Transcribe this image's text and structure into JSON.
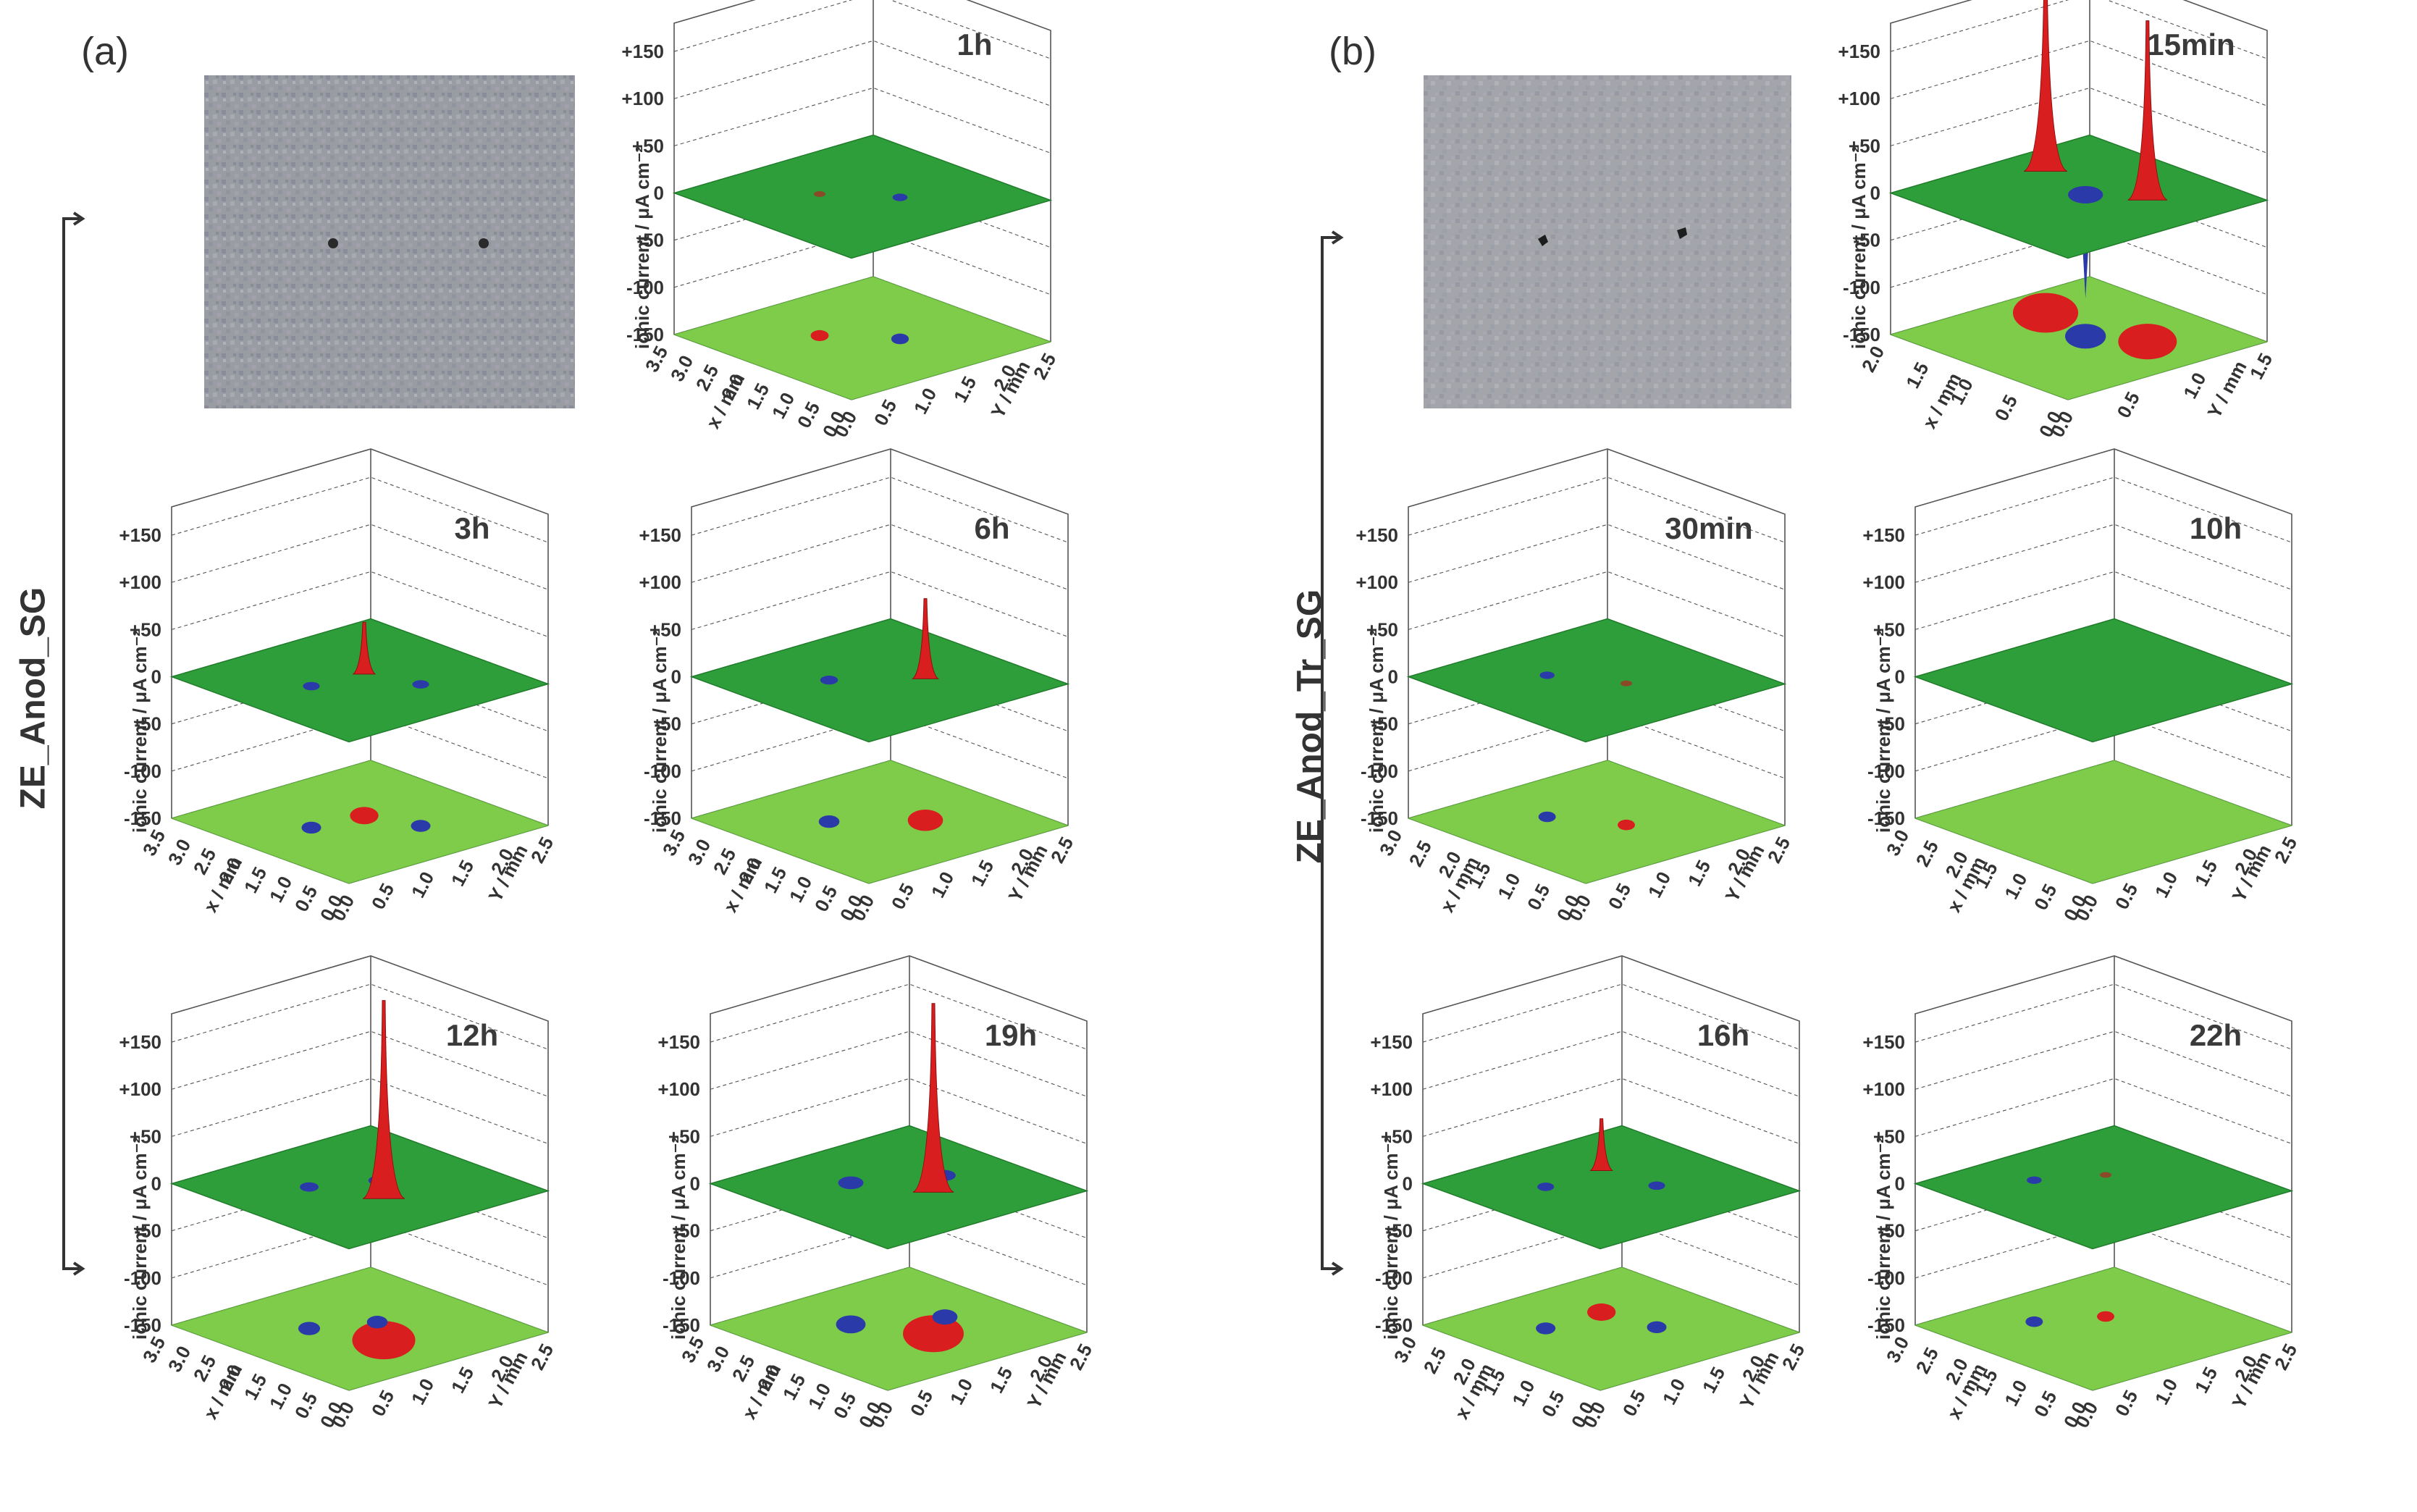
{
  "panels": [
    {
      "id": "a",
      "label": "(a)",
      "group_label": "ZE_Anod_SG"
    },
    {
      "id": "b",
      "label": "(b)",
      "group_label": "ZE_Anod_Tr_SG"
    }
  ],
  "chart_data": [
    {
      "type": "surface3d",
      "panel": "a",
      "title": "1h",
      "zlabel": "ionic current / μA cm⁻²",
      "zticks": [
        "+150",
        "+100",
        "+50",
        "0",
        "-50",
        "-100",
        "-150"
      ],
      "zlim": [
        -150,
        180
      ],
      "xlabel": "x / mm",
      "xticks": [
        "0.0",
        "0.5",
        "1.0",
        "1.5",
        "2.0",
        "2.5",
        "3.0",
        "3.5"
      ],
      "ylabel": "Y / mm",
      "yticks": [
        "0.0",
        "0.5",
        "1.0",
        "1.5",
        "2.0",
        "2.5"
      ],
      "features": [
        {
          "sign": "anodic",
          "peak": 8,
          "x": 2.2,
          "y": 1.0
        },
        {
          "sign": "cathodic",
          "peak": -6,
          "x": 1.4,
          "y": 1.5
        }
      ]
    },
    {
      "type": "surface3d",
      "panel": "a",
      "title": "3h",
      "zlabel": "ionic current / μA cm⁻²",
      "zticks": [
        "+150",
        "+100",
        "+50",
        "0",
        "-50",
        "-100",
        "-150"
      ],
      "zlim": [
        -150,
        180
      ],
      "xlabel": "x / mm",
      "xticks": [
        "0.0",
        "0.5",
        "1.0",
        "1.5",
        "2.0",
        "2.5",
        "3.0",
        "3.5"
      ],
      "ylabel": "Y / mm",
      "yticks": [
        "0.0",
        "0.5",
        "1.0",
        "1.5",
        "2.0",
        "2.5"
      ],
      "features": [
        {
          "sign": "anodic",
          "peak": 55,
          "x": 1.9,
          "y": 1.4
        },
        {
          "sign": "cathodic",
          "peak": -15,
          "x": 1.1,
          "y": 1.6
        },
        {
          "sign": "cathodic",
          "peak": -15,
          "x": 2.0,
          "y": 0.8
        }
      ]
    },
    {
      "type": "surface3d",
      "panel": "a",
      "title": "6h",
      "zlabel": "ionic current / μA cm⁻²",
      "zticks": [
        "+150",
        "+100",
        "+50",
        "0",
        "-50",
        "-100",
        "-150"
      ],
      "zlim": [
        -150,
        180
      ],
      "xlabel": "x / mm",
      "xticks": [
        "0.0",
        "0.5",
        "1.0",
        "1.5",
        "2.0",
        "2.5",
        "3.0",
        "3.5"
      ],
      "ylabel": "Y / mm",
      "yticks": [
        "0.0",
        "0.5",
        "1.0",
        "1.5",
        "2.0",
        "2.5"
      ],
      "features": [
        {
          "sign": "anodic",
          "peak": 85,
          "x": 1.4,
          "y": 1.6
        },
        {
          "sign": "cathodic",
          "peak": -20,
          "x": 2.2,
          "y": 0.9
        }
      ]
    },
    {
      "type": "surface3d",
      "panel": "a",
      "title": "12h",
      "zlabel": "ionic current / μA cm⁻²",
      "zticks": [
        "+150",
        "+100",
        "+50",
        "0",
        "-50",
        "-100",
        "-150"
      ],
      "zlim": [
        -150,
        180
      ],
      "xlabel": "x / mm",
      "xticks": [
        "0.0",
        "0.5",
        "1.0",
        "1.5",
        "2.0",
        "2.5",
        "3.0",
        "3.5"
      ],
      "ylabel": "Y / mm",
      "yticks": [
        "0.0",
        "0.5",
        "1.0",
        "1.5",
        "2.0",
        "2.5"
      ],
      "features": [
        {
          "sign": "anodic",
          "peak": 210,
          "x": 1.2,
          "y": 1.2
        },
        {
          "sign": "cathodic",
          "peak": -25,
          "x": 2.2,
          "y": 0.9
        },
        {
          "sign": "cathodic",
          "peak": -20,
          "x": 1.8,
          "y": 1.5
        }
      ]
    },
    {
      "type": "surface3d",
      "panel": "a",
      "title": "19h",
      "zlabel": "ionic current / μA cm⁻²",
      "zticks": [
        "+150",
        "+100",
        "+50",
        "0",
        "-50",
        "-100",
        "-150"
      ],
      "zlim": [
        -150,
        180
      ],
      "xlabel": "x / mm",
      "xticks": [
        "0.0",
        "0.5",
        "1.0",
        "1.5",
        "2.0",
        "2.5",
        "3.0",
        "3.5"
      ],
      "ylabel": "Y / mm",
      "yticks": [
        "0.0",
        "0.5",
        "1.0",
        "1.5",
        "2.0",
        "2.5"
      ],
      "features": [
        {
          "sign": "anodic",
          "peak": 200,
          "x": 1.3,
          "y": 1.4
        },
        {
          "sign": "cathodic",
          "peak": -60,
          "x": 2.3,
          "y": 1.0
        },
        {
          "sign": "cathodic",
          "peak": -40,
          "x": 1.7,
          "y": 1.8
        }
      ]
    },
    {
      "type": "surface3d",
      "panel": "b",
      "title": "15min",
      "zlabel": "ionic current / μA cm⁻²",
      "zticks": [
        "+150",
        "+100",
        "+50",
        "0",
        "-50",
        "-100",
        "-150"
      ],
      "zlim": [
        -150,
        180
      ],
      "xlabel": "x / mm",
      "xticks": [
        "0.0",
        "0.5",
        "1.0",
        "1.5",
        "2.0"
      ],
      "ylabel": "Y / mm",
      "yticks": [
        "0.0",
        "0.5",
        "1.0",
        "1.5"
      ],
      "features": [
        {
          "sign": "anodic",
          "peak": 190,
          "x": 0.6,
          "y": 1.0
        },
        {
          "sign": "anodic",
          "peak": 220,
          "x": 1.6,
          "y": 0.9
        },
        {
          "sign": "cathodic",
          "peak": -110,
          "x": 1.0,
          "y": 0.8
        }
      ]
    },
    {
      "type": "surface3d",
      "panel": "b",
      "title": "30min",
      "zlabel": "ionic current / μA cm⁻²",
      "zticks": [
        "+150",
        "+100",
        "+50",
        "0",
        "-50",
        "-100",
        "-150"
      ],
      "zlim": [
        -150,
        180
      ],
      "xlabel": "x / mm",
      "xticks": [
        "0.0",
        "0.5",
        "1.0",
        "1.5",
        "2.0",
        "2.5",
        "3.0"
      ],
      "ylabel": "Y / mm",
      "yticks": [
        "0.0",
        "0.5",
        "1.0",
        "1.5",
        "2.0",
        "2.5"
      ],
      "features": [
        {
          "sign": "anodic",
          "peak": 5,
          "x": 1.2,
          "y": 1.4
        },
        {
          "sign": "cathodic",
          "peak": -5,
          "x": 2.0,
          "y": 1.0
        }
      ]
    },
    {
      "type": "surface3d",
      "panel": "b",
      "title": "10h",
      "zlabel": "ionic current / μA cm⁻²",
      "zticks": [
        "+150",
        "+100",
        "+50",
        "0",
        "-50",
        "-100",
        "-150"
      ],
      "zlim": [
        -150,
        180
      ],
      "xlabel": "x / mm",
      "xticks": [
        "0.0",
        "0.5",
        "1.0",
        "1.5",
        "2.0",
        "2.5",
        "3.0"
      ],
      "ylabel": "Y / mm",
      "yticks": [
        "0.0",
        "0.5",
        "1.0",
        "1.5",
        "2.0",
        "2.5"
      ],
      "features": []
    },
    {
      "type": "surface3d",
      "panel": "b",
      "title": "16h",
      "zlabel": "ionic current / μA cm⁻²",
      "zticks": [
        "+150",
        "+100",
        "+50",
        "0",
        "-50",
        "-100",
        "-150"
      ],
      "zlim": [
        -150,
        180
      ],
      "xlabel": "x / mm",
      "xticks": [
        "0.0",
        "0.5",
        "1.0",
        "1.5",
        "2.0",
        "2.5",
        "3.0"
      ],
      "ylabel": "Y / mm",
      "yticks": [
        "0.0",
        "0.5",
        "1.0",
        "1.5",
        "2.0",
        "2.5"
      ],
      "features": [
        {
          "sign": "anodic",
          "peak": 55,
          "x": 2.0,
          "y": 1.5
        },
        {
          "sign": "cathodic",
          "peak": -15,
          "x": 1.2,
          "y": 1.6
        },
        {
          "sign": "cathodic",
          "peak": -15,
          "x": 2.0,
          "y": 0.8
        }
      ]
    },
    {
      "type": "surface3d",
      "panel": "b",
      "title": "22h",
      "zlabel": "ionic current / μA cm⁻²",
      "zticks": [
        "+150",
        "+100",
        "+50",
        "0",
        "-50",
        "-100",
        "-150"
      ],
      "zlim": [
        -150,
        180
      ],
      "xlabel": "x / mm",
      "xticks": [
        "0.0",
        "0.5",
        "1.0",
        "1.5",
        "2.0",
        "2.5",
        "3.0"
      ],
      "ylabel": "Y / mm",
      "yticks": [
        "0.0",
        "0.5",
        "1.0",
        "1.5",
        "2.0",
        "2.5"
      ],
      "features": [
        {
          "sign": "anodic",
          "peak": 5,
          "x": 1.8,
          "y": 1.5
        },
        {
          "sign": "cathodic",
          "peak": -5,
          "x": 2.2,
          "y": 0.9
        }
      ]
    }
  ],
  "colors": {
    "plane": "#2e9e3a",
    "plane_dark": "#1f7a2a",
    "map": "#7fcc4a",
    "anodic": "#d81e1e",
    "cathodic": "#2a3aa8",
    "grid": "#555555",
    "text": "#333333"
  }
}
